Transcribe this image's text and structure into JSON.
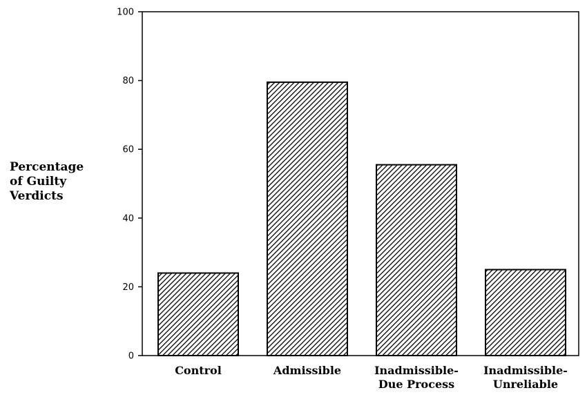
{
  "chart_data": {
    "type": "bar",
    "title": "",
    "xlabel": "",
    "ylabel": [
      "Percentage",
      "of Guilty",
      "Verdicts"
    ],
    "categories": [
      [
        "Control"
      ],
      [
        "Admissible"
      ],
      [
        "Inadmissible-",
        "Due Process"
      ],
      [
        "Inadmissible-",
        "Unreliable"
      ]
    ],
    "values": [
      24,
      79.5,
      55.5,
      25
    ],
    "ylim": [
      0,
      100
    ],
    "yticks": [
      0,
      20,
      40,
      60,
      80,
      100
    ],
    "grid": false,
    "legend": "none",
    "bar_fill": "diagonal-hatch",
    "colors": {
      "ink": "#000000",
      "background": "#ffffff"
    }
  }
}
